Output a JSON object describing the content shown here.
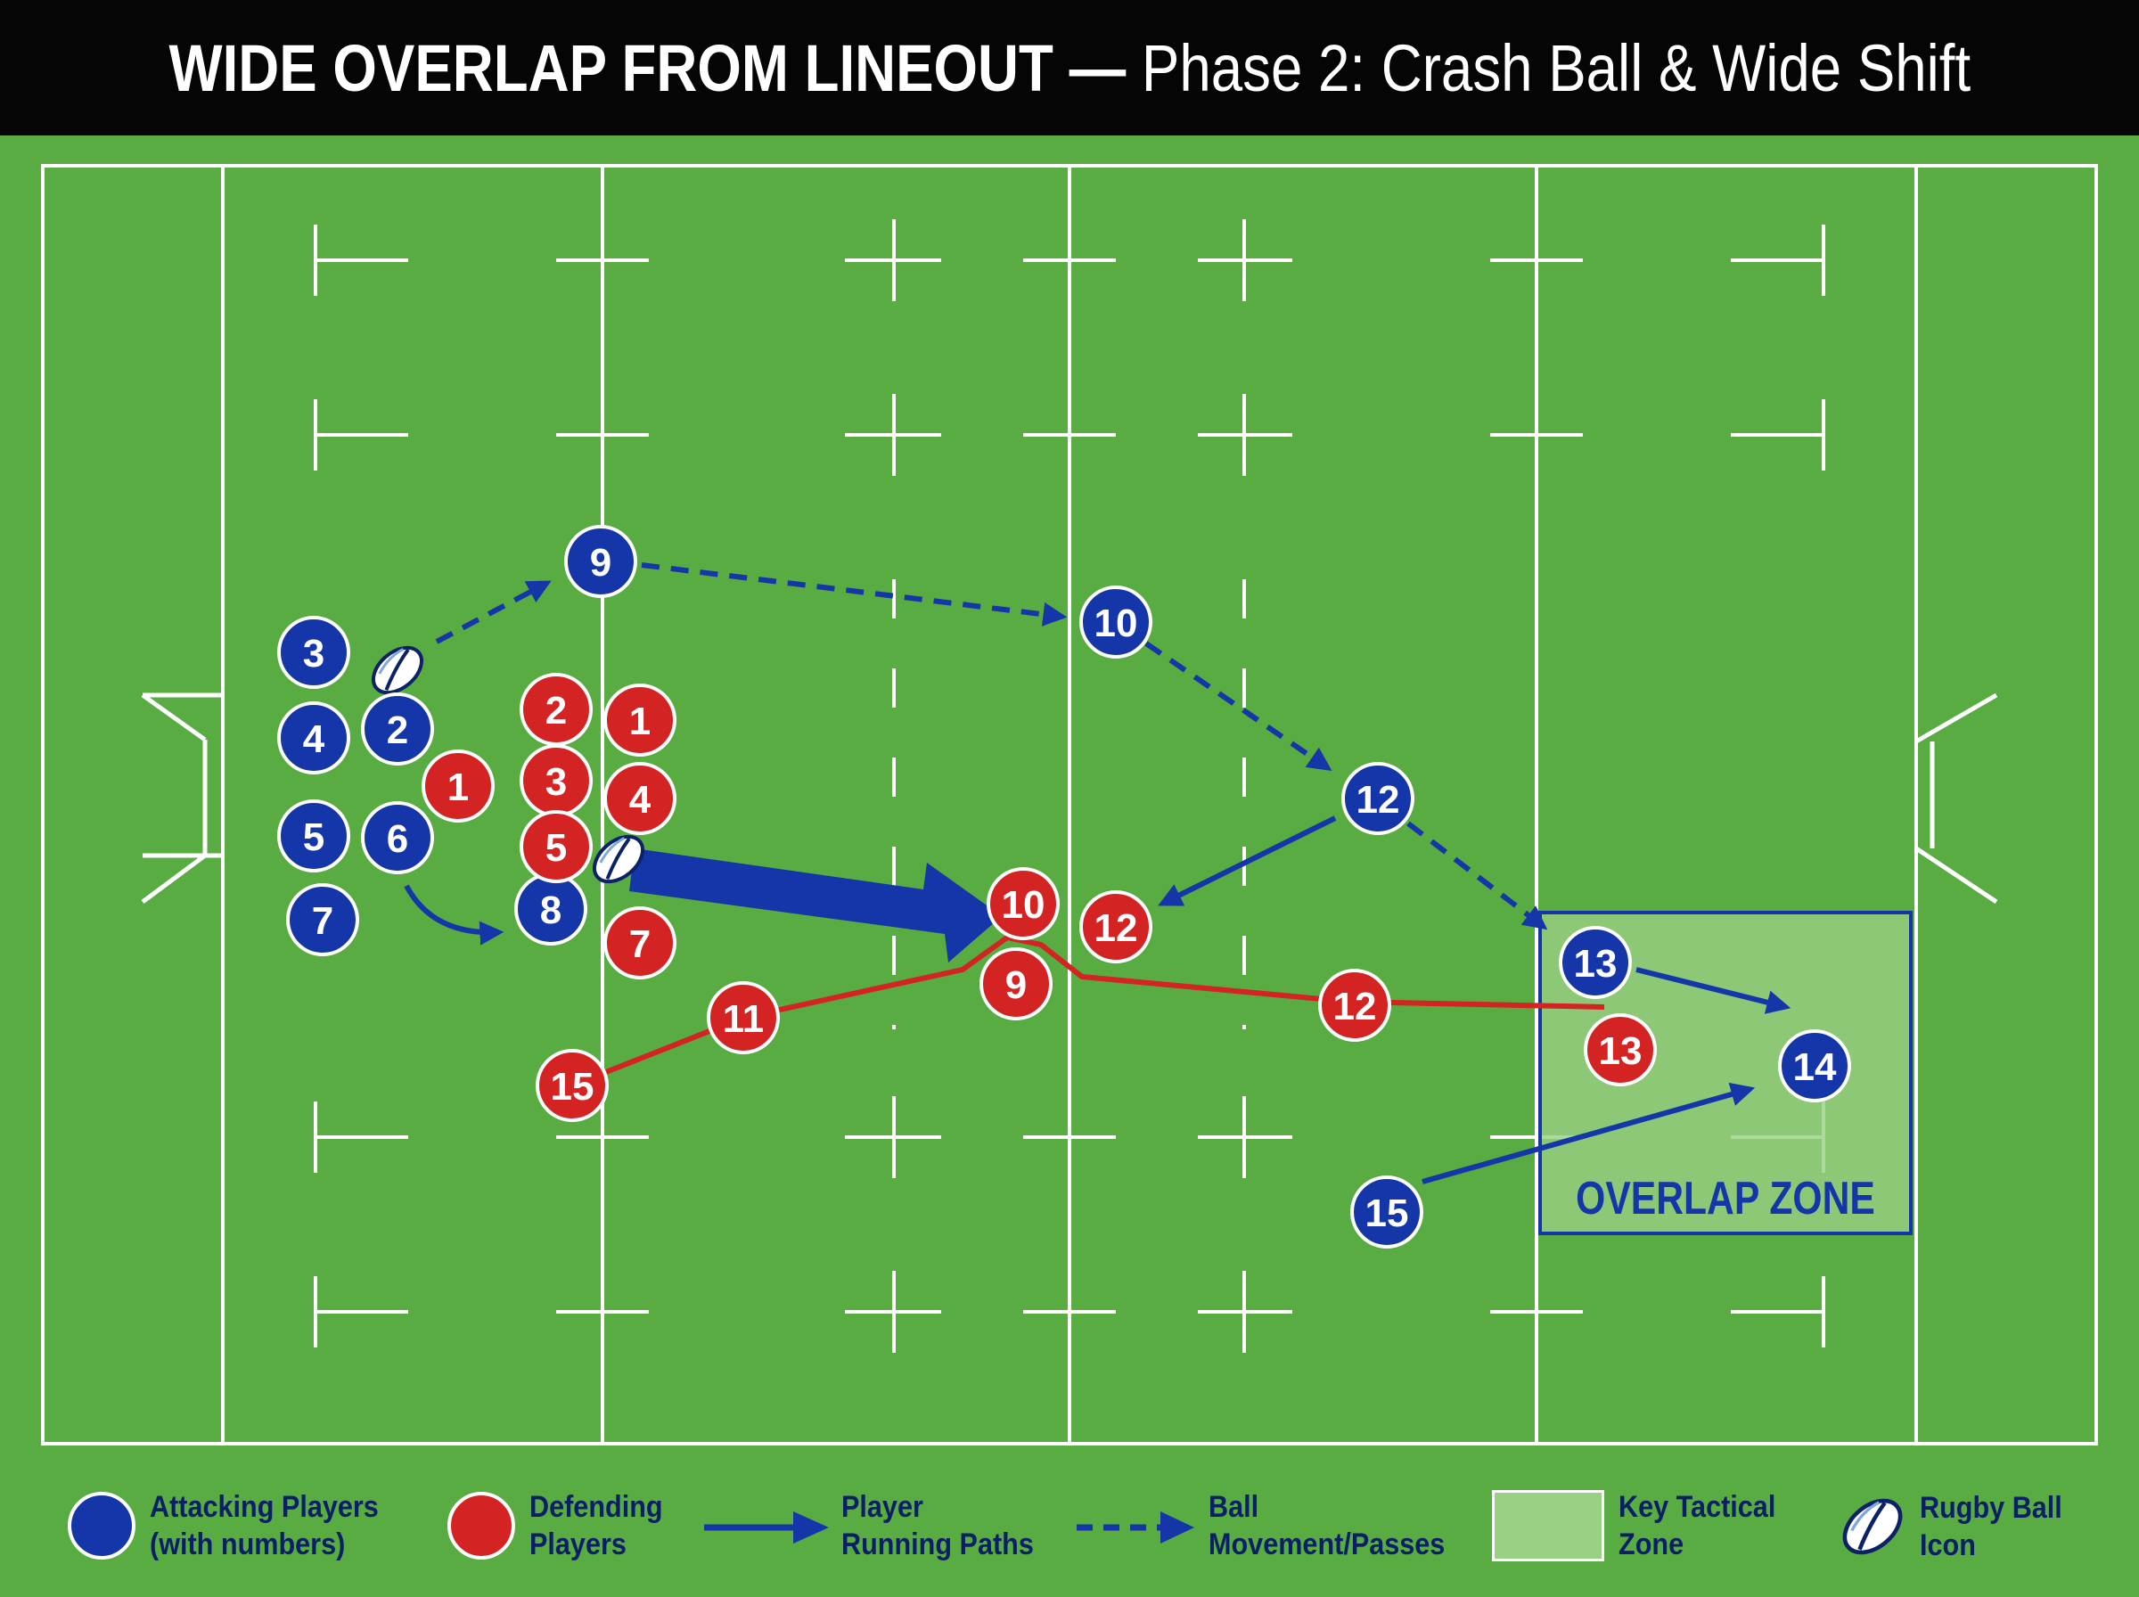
{
  "title": {
    "main": "WIDE OVERLAP FROM LINEOUT",
    "separator": " — ",
    "sub": "Phase 2: Crash Ball & Wide Shift"
  },
  "colors": {
    "pitch": "#58ac42",
    "lines": "#ffffff",
    "attacking": "#1436a8",
    "defending": "#d42323",
    "zone_fill": "#9ad083",
    "zone_border": "#1436a8",
    "title_bar": "#050505"
  },
  "attacking_players": [
    "3",
    "2",
    "4",
    "5",
    "6",
    "7",
    "8",
    "9",
    "10",
    "12",
    "13",
    "14",
    "15"
  ],
  "defending_players": [
    "2",
    "1",
    "1",
    "3",
    "4",
    "5",
    "7",
    "10",
    "9",
    "12",
    "11",
    "12",
    "13",
    "15"
  ],
  "zone": {
    "label": "OVERLAP ZONE"
  },
  "legend": {
    "attacking": {
      "line1": "Attacking Players",
      "line2": "(with numbers)"
    },
    "defending": {
      "line1": "Defending",
      "line2": "Players"
    },
    "running": {
      "line1": "Player",
      "line2": "Running Paths"
    },
    "passes": {
      "line1": "Ball",
      "line2": "Movement/Passes"
    },
    "zone": {
      "line1": "Key Tactical",
      "line2": "Zone"
    },
    "ball": {
      "line1": "Rugby Ball",
      "line2": "Icon"
    }
  },
  "icons": {
    "ball": "rugby-ball-icon"
  }
}
